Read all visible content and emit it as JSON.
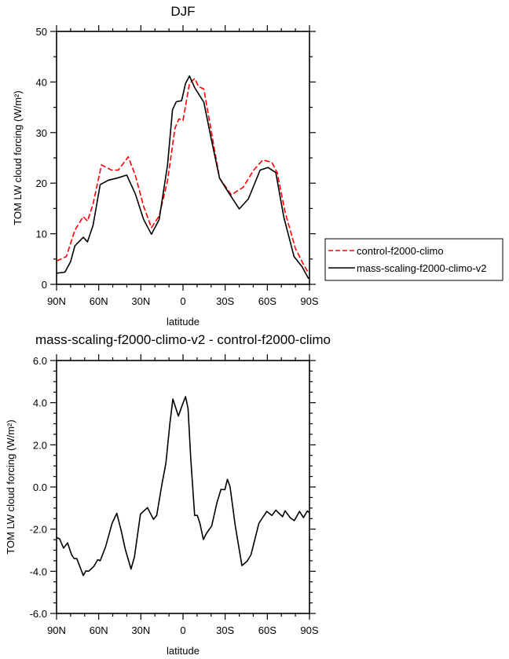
{
  "chart_data": [
    {
      "type": "line",
      "title": "DJF",
      "xlabel": "latitude",
      "ylabel": "TOM LW cloud forcing (W/m²)",
      "xlim": [
        90,
        -90
      ],
      "ylim": [
        0,
        50
      ],
      "xticks": [
        90,
        60,
        30,
        0,
        -30,
        -60,
        -90
      ],
      "xtick_labels": [
        "90N",
        "60N",
        "30N",
        "0",
        "30S",
        "60S",
        "90S"
      ],
      "yticks": [
        0,
        10,
        20,
        30,
        40,
        50
      ],
      "ytick_labels": [
        "0",
        "10",
        "20",
        "30",
        "40",
        "50"
      ],
      "grid": false,
      "legend": "outside-right",
      "series": [
        {
          "name": "control-f2000-climo",
          "color": "#ff0000",
          "style": "dashed",
          "x": [
            90,
            83,
            77,
            71,
            68,
            64,
            58,
            51,
            46,
            39,
            34,
            28,
            22.5,
            17,
            11,
            5.7,
            2.9,
            0,
            -4.6,
            -8.3,
            -11.1,
            -14.8,
            -20.4,
            -26,
            -34.4,
            -42.8,
            -50.3,
            -56.8,
            -63.3,
            -67,
            -72.6,
            -80,
            -85.6,
            -89.4
          ],
          "y": [
            4.6,
            5.5,
            10.7,
            13.4,
            12.5,
            15.9,
            23.6,
            22.6,
            22.6,
            25.2,
            21.6,
            15.4,
            11.2,
            13.5,
            20.5,
            30.9,
            32.7,
            32.4,
            39.7,
            40.7,
            39.1,
            38.6,
            29.8,
            21,
            17.7,
            19.2,
            22.6,
            24.6,
            24.1,
            22.1,
            14.3,
            7.1,
            4.0,
            2.2
          ]
        },
        {
          "name": "mass-scaling-f2000-climo-v2",
          "color": "#000000",
          "style": "solid",
          "x": [
            90,
            84,
            80,
            77,
            71,
            68,
            64,
            59,
            53,
            47,
            40,
            34,
            28,
            22.5,
            17,
            11,
            7.5,
            4.8,
            1,
            -1.8,
            -4.6,
            -8.3,
            -14.8,
            -20.4,
            -26,
            -31.6,
            -40,
            -46.5,
            -54.9,
            -60.5,
            -66,
            -71.7,
            -79,
            -84.7,
            -89.4
          ],
          "y": [
            2.2,
            2.4,
            4.5,
            7.6,
            9.3,
            8.4,
            11.7,
            19.7,
            20.6,
            21,
            21.6,
            17.9,
            12.8,
            9.9,
            12.8,
            23.6,
            34.5,
            36.1,
            36.3,
            39.7,
            41.2,
            38.9,
            36,
            28.3,
            21,
            18.5,
            14.9,
            16.9,
            22.6,
            23.1,
            22.1,
            13.3,
            5.5,
            3.5,
            1.1
          ]
        }
      ]
    },
    {
      "type": "line",
      "title": "mass-scaling-f2000-climo-v2 - control-f2000-climo",
      "xlabel": "latitude",
      "ylabel": "TOM LW cloud forcing (W/m²)",
      "xlim": [
        90,
        -90
      ],
      "ylim": [
        -6,
        6
      ],
      "xticks": [
        90,
        60,
        30,
        0,
        -30,
        -60,
        -90
      ],
      "xtick_labels": [
        "90N",
        "60N",
        "30N",
        "0",
        "30S",
        "60S",
        "90S"
      ],
      "yticks": [
        -6,
        -4,
        -2,
        0,
        2,
        4,
        6
      ],
      "ytick_labels": [
        "-6.0",
        "-4.0",
        "-2.0",
        "0.0",
        "2.0",
        "4.0",
        "6.0"
      ],
      "grid": false,
      "series": [
        {
          "color": "#000000",
          "style": "solid",
          "x": [
            90,
            87.8,
            85,
            82.2,
            79.4,
            77.5,
            75.6,
            71,
            69.1,
            67.2,
            63.5,
            60.7,
            58.9,
            55.1,
            50.5,
            47.1,
            43.9,
            41.1,
            37,
            34.6,
            30.3,
            25.3,
            21,
            18.7,
            15,
            12.2,
            9.4,
            7.2,
            5.7,
            3.3,
            1,
            -1.8,
            -3.6,
            -5.5,
            -8.3,
            -10.2,
            -12,
            -14.5,
            -16.7,
            -20.4,
            -24.2,
            -27,
            -29.8,
            -31.6,
            -33.5,
            -37.2,
            -41.9,
            -45.6,
            -48.4,
            -54,
            -59.6,
            -63.3,
            -66.1,
            -70.8,
            -72.6,
            -76.4,
            -79.2,
            -82.9,
            -85.7,
            -88.5,
            -90
          ],
          "y": [
            -2.4,
            -2.46,
            -2.9,
            -2.65,
            -3.2,
            -3.4,
            -3.4,
            -4.2,
            -3.98,
            -4.0,
            -3.77,
            -3.45,
            -3.5,
            -2.84,
            -1.72,
            -1.25,
            -2.1,
            -2.96,
            -3.89,
            -3.33,
            -1.29,
            -0.98,
            -1.53,
            -1.35,
            0.14,
            1.13,
            2.99,
            4.17,
            3.86,
            3.36,
            3.8,
            4.29,
            3.73,
            1.38,
            -1.35,
            -1.35,
            -1.72,
            -2.49,
            -2.2,
            -1.85,
            -0.73,
            -0.11,
            -0.13,
            0.36,
            0.01,
            -1.84,
            -3.73,
            -3.52,
            -3.21,
            -1.72,
            -1.16,
            -1.35,
            -1.1,
            -1.41,
            -1.13,
            -1.47,
            -1.6,
            -1.16,
            -1.45,
            -1.14,
            -1.22
          ]
        }
      ]
    }
  ]
}
